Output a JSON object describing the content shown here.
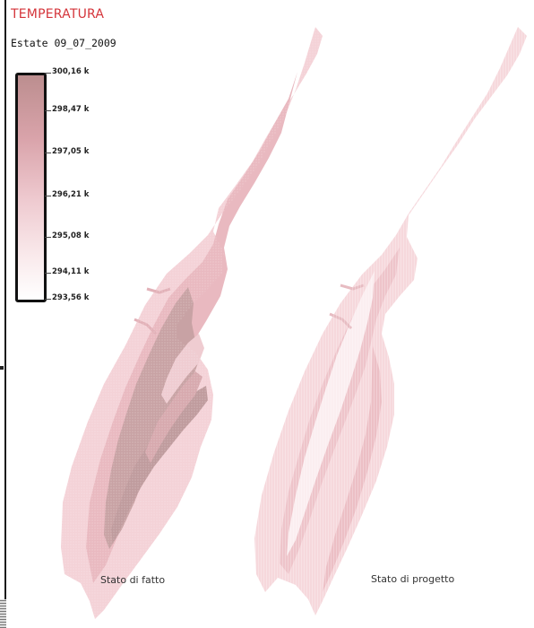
{
  "legend": {
    "title": "TEMPERATURA",
    "subtitle": "Estate 09_07_2009",
    "scale": [
      {
        "label": "300,16 k",
        "value": 300.16
      },
      {
        "label": "298,47 k",
        "value": 298.47
      },
      {
        "label": "297,05 k",
        "value": 297.05
      },
      {
        "label": "296,21 k",
        "value": 296.21
      },
      {
        "label": "295,08 k",
        "value": 295.08
      },
      {
        "label": "294,11 k",
        "value": 294.11
      },
      {
        "label": "293,56 k",
        "value": 293.56
      }
    ],
    "colors": {
      "max": "#bc8e8f",
      "high": "#d9a3aa",
      "mid": "#eec9cf",
      "low": "#f9e9eb",
      "min": "#ffffff"
    }
  },
  "maps": {
    "left_caption": "Stato di fatto",
    "right_caption": "Stato di progetto"
  },
  "title_color": "#d4343a"
}
